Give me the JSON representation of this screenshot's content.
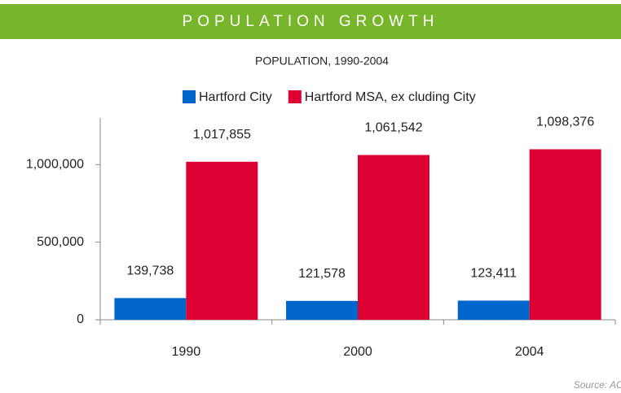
{
  "header": {
    "title": "POPULATION GROWTH"
  },
  "chart_data": {
    "type": "bar",
    "title": "POPULATION, 1990-2004",
    "categories": [
      "1990",
      "2000",
      "2004"
    ],
    "series": [
      {
        "name": "Hartford City",
        "color": "#0066cc",
        "values": [
          139738,
          121578,
          123411
        ],
        "value_labels": [
          "139,738",
          "121,578",
          "123,411"
        ]
      },
      {
        "name": "Hartford MSA, ex cluding City",
        "color": "#dd0033",
        "values": [
          1017855,
          1061542,
          1098376
        ],
        "value_labels": [
          "1,017,855",
          "1,061,542",
          "1,098,376"
        ]
      }
    ],
    "ylim": [
      0,
      1300000
    ],
    "yticks": [
      0,
      {
        "value": 500000,
        "label": "500,000"
      },
      {
        "value": 1000000,
        "label": "1,000,000"
      }
    ],
    "legend": "top",
    "source": "Source: ACCRA"
  }
}
